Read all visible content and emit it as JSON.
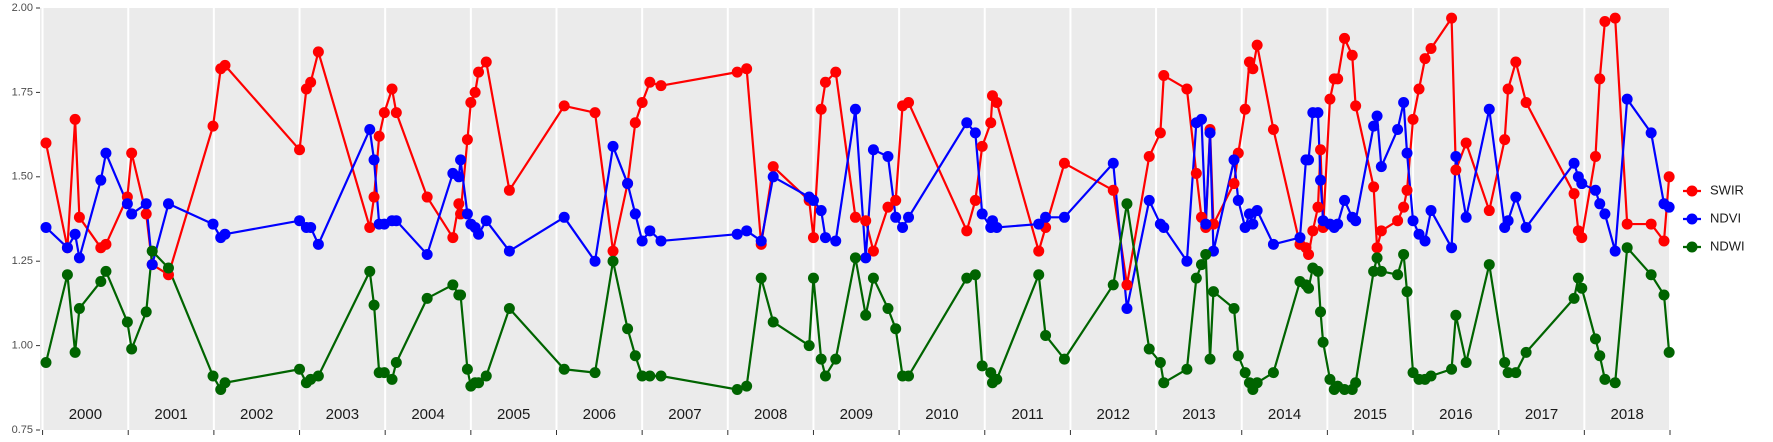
{
  "chart_data": {
    "type": "line",
    "x": [
      2000.04,
      2000.29,
      2000.38,
      2000.43,
      2000.68,
      2000.74,
      2000.99,
      2001.04,
      2001.21,
      2001.28,
      2001.47,
      2001.99,
      2002.08,
      2002.13,
      2003.0,
      2003.08,
      2003.13,
      2003.22,
      2003.82,
      2003.87,
      2003.93,
      2003.99,
      2004.08,
      2004.13,
      2004.49,
      2004.79,
      2004.86,
      2004.88,
      2004.96,
      2005.0,
      2005.05,
      2005.09,
      2005.18,
      2005.45,
      2006.09,
      2006.45,
      2006.66,
      2006.83,
      2006.92,
      2007.0,
      2007.09,
      2007.22,
      2008.11,
      2008.22,
      2008.39,
      2008.53,
      2008.95,
      2009.0,
      2009.09,
      2009.14,
      2009.26,
      2009.49,
      2009.61,
      2009.7,
      2009.87,
      2009.96,
      2010.04,
      2010.11,
      2010.79,
      2010.89,
      2010.97,
      2011.07,
      2011.09,
      2011.14,
      2011.63,
      2011.71,
      2011.93,
      2012.5,
      2012.66,
      2012.92,
      2013.05,
      2013.09,
      2013.36,
      2013.47,
      2013.53,
      2013.58,
      2013.63,
      2013.67,
      2013.91,
      2013.96,
      2014.04,
      2014.09,
      2014.13,
      2014.18,
      2014.37,
      2014.68,
      2014.75,
      2014.78,
      2014.83,
      2014.89,
      2014.92,
      2014.95,
      2015.03,
      2015.08,
      2015.12,
      2015.2,
      2015.29,
      2015.33,
      2015.54,
      2015.58,
      2015.63,
      2015.82,
      2015.89,
      2015.93,
      2016.0,
      2016.07,
      2016.14,
      2016.21,
      2016.45,
      2016.5,
      2016.62,
      2016.89,
      2017.07,
      2017.11,
      2017.2,
      2017.32,
      2017.88,
      2017.93,
      2017.97,
      2018.13,
      2018.18,
      2018.24,
      2018.36,
      2018.5,
      2018.78,
      2018.93,
      2018.99
    ],
    "series": [
      {
        "name": "SWIR",
        "color": "#ff0000",
        "values": [
          1.6,
          1.29,
          1.67,
          1.38,
          1.29,
          1.3,
          1.44,
          1.57,
          1.39,
          1.24,
          1.21,
          1.65,
          1.82,
          1.83,
          1.58,
          1.76,
          1.78,
          1.87,
          1.35,
          1.44,
          1.62,
          1.69,
          1.76,
          1.69,
          1.44,
          1.32,
          1.42,
          1.39,
          1.61,
          1.72,
          1.75,
          1.81,
          1.84,
          1.46,
          1.71,
          1.69,
          1.28,
          1.48,
          1.66,
          1.72,
          1.78,
          1.77,
          1.81,
          1.82,
          1.3,
          1.53,
          1.43,
          1.32,
          1.7,
          1.78,
          1.81,
          1.38,
          1.37,
          1.28,
          1.41,
          1.43,
          1.71,
          1.72,
          1.34,
          1.43,
          1.59,
          1.66,
          1.74,
          1.72,
          1.28,
          1.35,
          1.54,
          1.46,
          1.18,
          1.56,
          1.63,
          1.8,
          1.76,
          1.51,
          1.38,
          1.35,
          1.64,
          1.36,
          1.48,
          1.57,
          1.7,
          1.84,
          1.82,
          1.89,
          1.64,
          1.3,
          1.29,
          1.27,
          1.34,
          1.41,
          1.58,
          1.35,
          1.73,
          1.79,
          1.79,
          1.91,
          1.86,
          1.71,
          1.47,
          1.29,
          1.34,
          1.37,
          1.41,
          1.46,
          1.67,
          1.76,
          1.85,
          1.88,
          1.97,
          1.52,
          1.6,
          1.4,
          1.61,
          1.76,
          1.84,
          1.72,
          1.45,
          1.34,
          1.32,
          1.56,
          1.79,
          1.96,
          1.97,
          1.36,
          1.36,
          1.31,
          1.5
        ]
      },
      {
        "name": "NDVI",
        "color": "#0000ff",
        "values": [
          1.35,
          1.29,
          1.33,
          1.26,
          1.49,
          1.57,
          1.42,
          1.39,
          1.42,
          1.24,
          1.42,
          1.36,
          1.32,
          1.33,
          1.37,
          1.35,
          1.35,
          1.3,
          1.64,
          1.55,
          1.36,
          1.36,
          1.37,
          1.37,
          1.27,
          1.51,
          1.5,
          1.55,
          1.39,
          1.36,
          1.35,
          1.33,
          1.37,
          1.28,
          1.38,
          1.25,
          1.59,
          1.48,
          1.39,
          1.31,
          1.34,
          1.31,
          1.33,
          1.34,
          1.31,
          1.5,
          1.44,
          1.43,
          1.4,
          1.32,
          1.31,
          1.7,
          1.26,
          1.58,
          1.56,
          1.38,
          1.35,
          1.38,
          1.66,
          1.63,
          1.39,
          1.35,
          1.37,
          1.35,
          1.36,
          1.38,
          1.38,
          1.54,
          1.11,
          1.43,
          1.36,
          1.35,
          1.25,
          1.66,
          1.67,
          1.36,
          1.63,
          1.28,
          1.55,
          1.43,
          1.35,
          1.39,
          1.36,
          1.4,
          1.3,
          1.32,
          1.55,
          1.55,
          1.69,
          1.69,
          1.49,
          1.37,
          1.36,
          1.35,
          1.36,
          1.43,
          1.38,
          1.37,
          1.65,
          1.68,
          1.53,
          1.64,
          1.72,
          1.57,
          1.37,
          1.33,
          1.31,
          1.4,
          1.29,
          1.56,
          1.38,
          1.7,
          1.35,
          1.37,
          1.44,
          1.35,
          1.54,
          1.5,
          1.48,
          1.46,
          1.42,
          1.39,
          1.28,
          1.73,
          1.63,
          1.42,
          1.41
        ]
      },
      {
        "name": "NDWI",
        "color": "#006400",
        "values": [
          0.95,
          1.21,
          0.98,
          1.11,
          1.19,
          1.22,
          1.07,
          0.99,
          1.1,
          1.28,
          1.23,
          0.91,
          0.87,
          0.89,
          0.93,
          0.89,
          0.9,
          0.91,
          1.22,
          1.12,
          0.92,
          0.92,
          0.9,
          0.95,
          1.14,
          1.18,
          1.15,
          1.15,
          0.93,
          0.88,
          0.89,
          0.89,
          0.91,
          1.11,
          0.93,
          0.92,
          1.25,
          1.05,
          0.97,
          0.91,
          0.91,
          0.91,
          0.87,
          0.88,
          1.2,
          1.07,
          1.0,
          1.2,
          0.96,
          0.91,
          0.96,
          1.26,
          1.09,
          1.2,
          1.11,
          1.05,
          0.91,
          0.91,
          1.2,
          1.21,
          0.94,
          0.92,
          0.89,
          0.9,
          1.21,
          1.03,
          0.96,
          1.18,
          1.42,
          0.99,
          0.95,
          0.89,
          0.93,
          1.2,
          1.24,
          1.27,
          0.96,
          1.16,
          1.11,
          0.97,
          0.92,
          0.89,
          0.87,
          0.89,
          0.92,
          1.19,
          1.18,
          1.17,
          1.23,
          1.22,
          1.1,
          1.01,
          0.9,
          0.87,
          0.88,
          0.87,
          0.87,
          0.89,
          1.22,
          1.26,
          1.22,
          1.21,
          1.27,
          1.16,
          0.92,
          0.9,
          0.9,
          0.91,
          0.93,
          1.09,
          0.95,
          1.24,
          0.95,
          0.92,
          0.92,
          0.98,
          1.14,
          1.2,
          1.17,
          1.02,
          0.97,
          0.9,
          0.89,
          1.29,
          1.21,
          1.15,
          0.98
        ]
      }
    ],
    "xlim": [
      1999.97,
      2019.0
    ],
    "xticks": [
      2000,
      2001,
      2002,
      2003,
      2004,
      2005,
      2006,
      2007,
      2008,
      2009,
      2010,
      2011,
      2012,
      2013,
      2014,
      2015,
      2016,
      2017,
      2018,
      2019
    ],
    "year_labels": [
      "2000",
      "2001",
      "2002",
      "2003",
      "2004",
      "2005",
      "2006",
      "2007",
      "2008",
      "2009",
      "2010",
      "2011",
      "2012",
      "2013",
      "2014",
      "2015",
      "2016",
      "2017",
      "2018"
    ],
    "ylim": [
      0.75,
      2.0
    ],
    "yticks": [
      0.75,
      {
        "value": 1.0,
        "label": "1.00"
      },
      1.25,
      {
        "value": 1.5,
        "label": "1.50"
      },
      1.75,
      {
        "value": 2.0,
        "label": "2.00"
      }
    ],
    "grid": "x",
    "legend": "right"
  }
}
